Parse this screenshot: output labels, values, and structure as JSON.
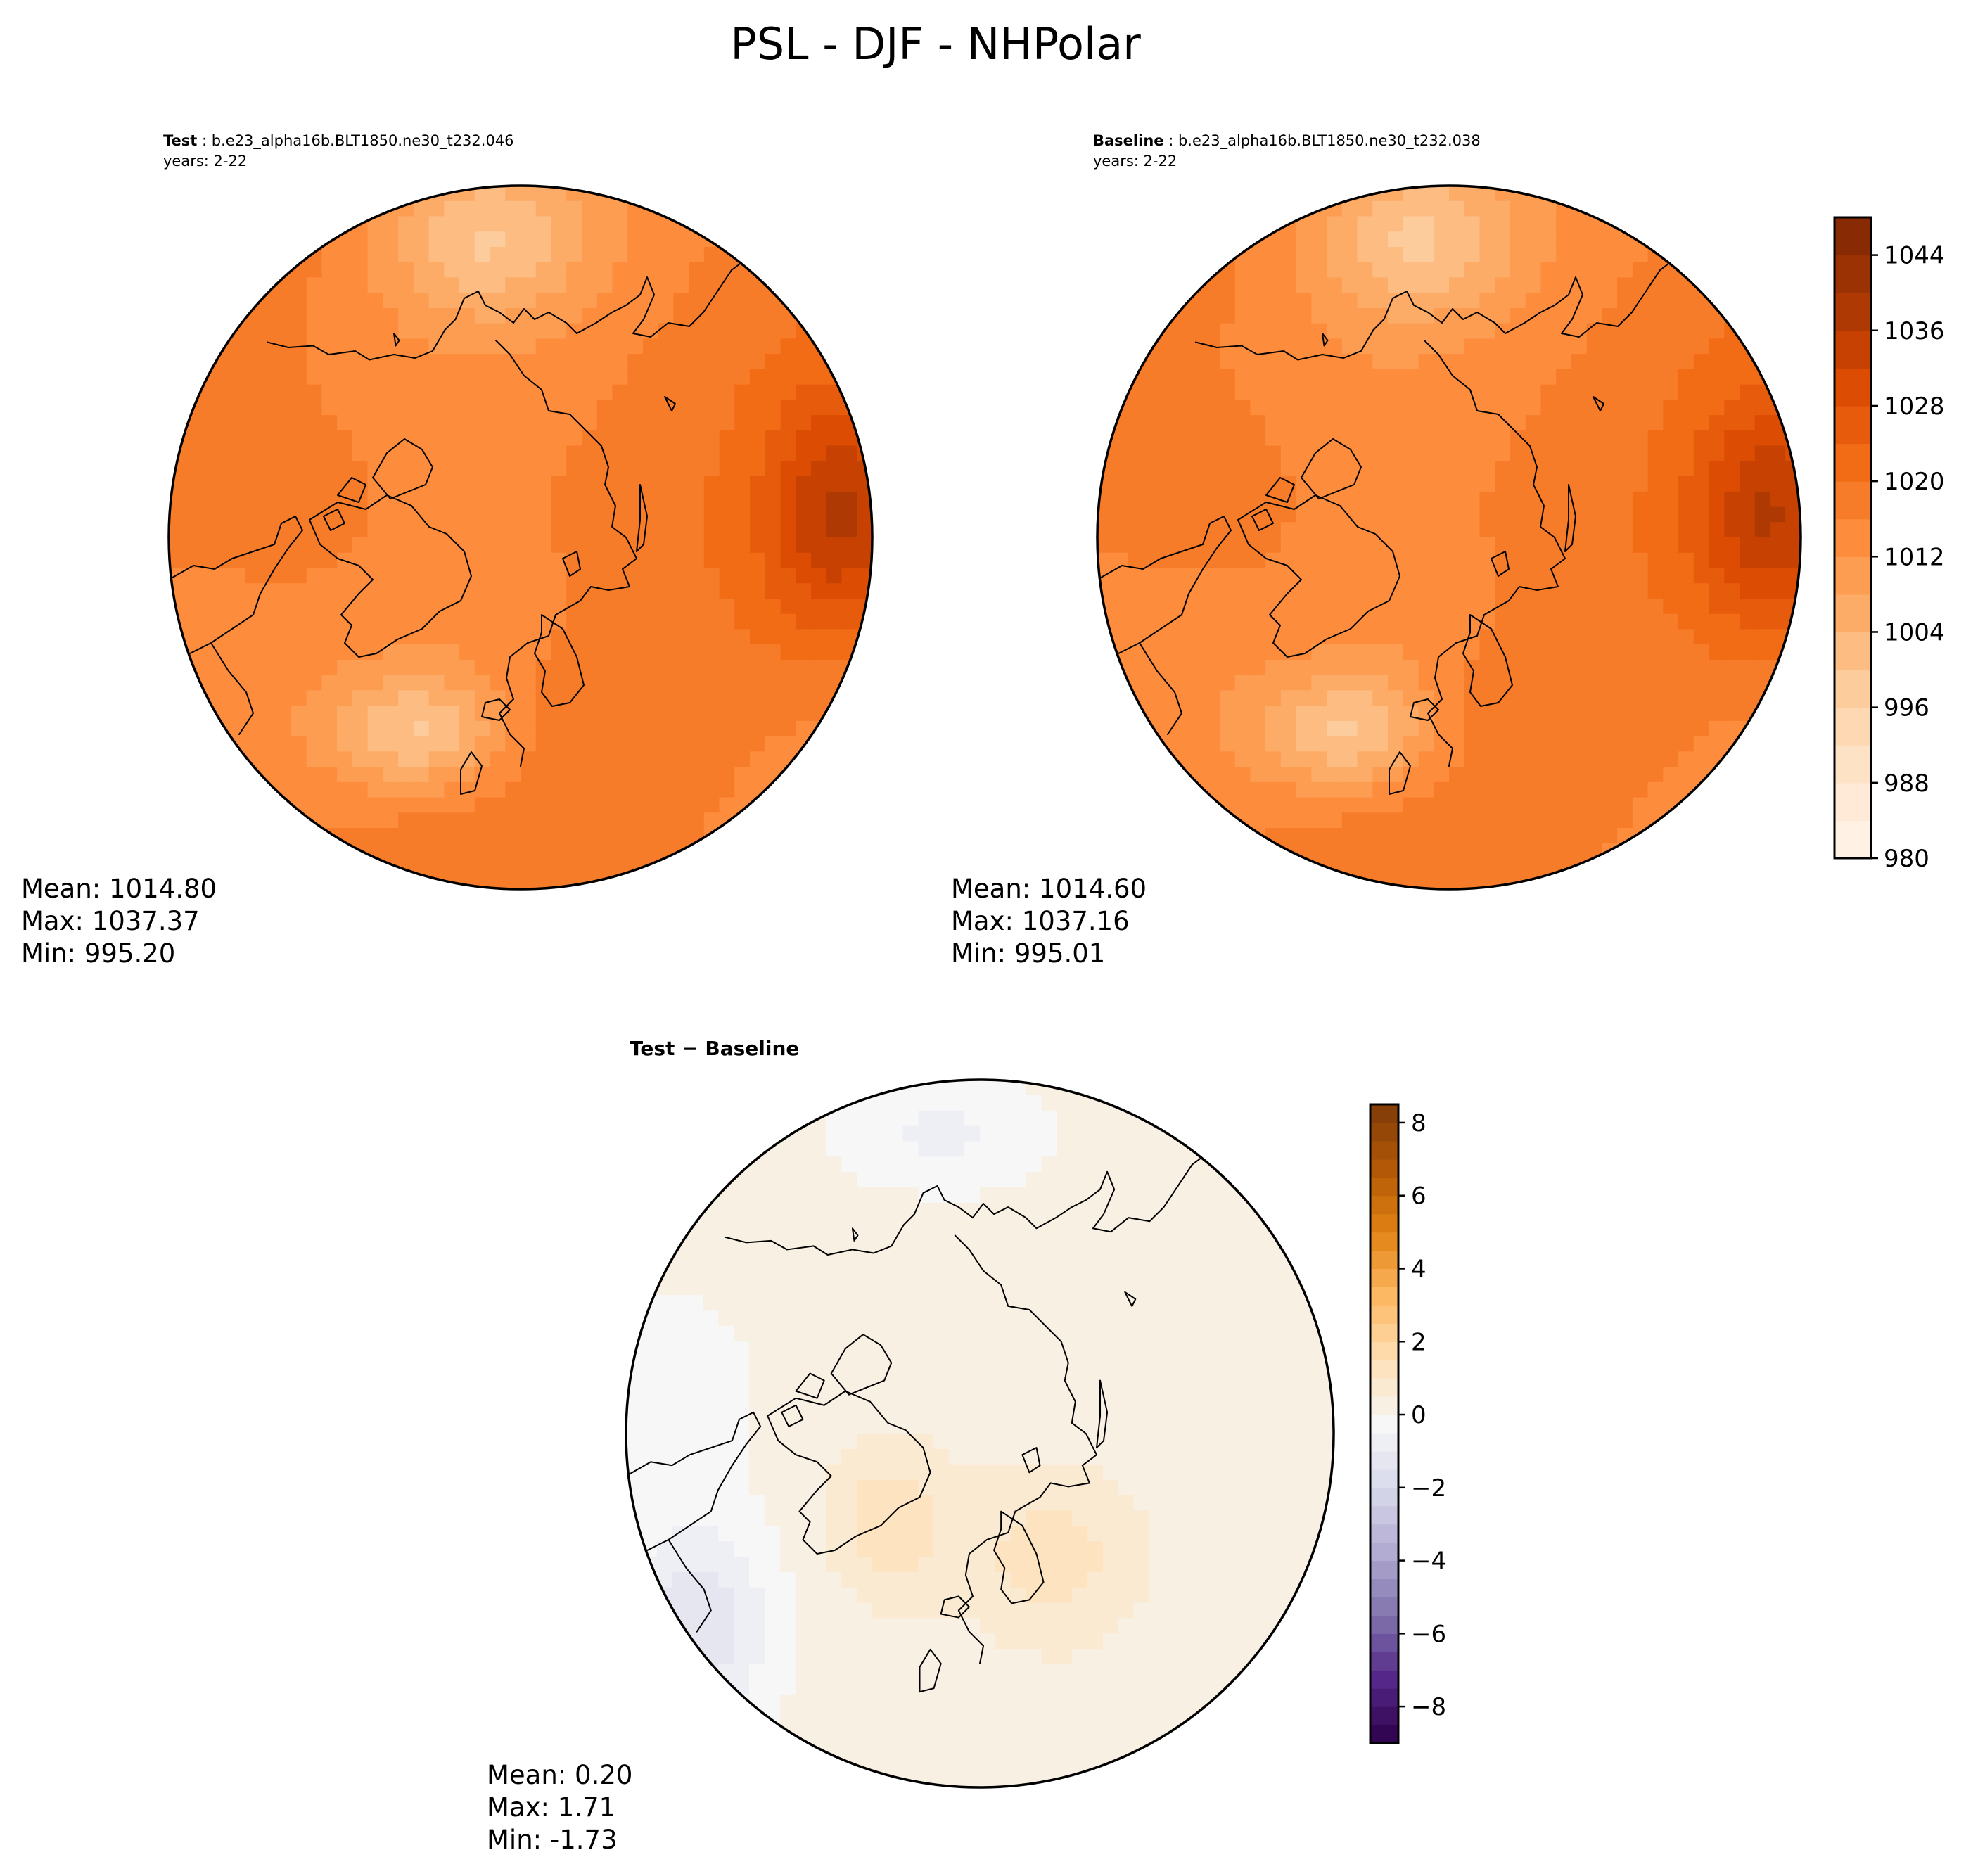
{
  "figure_title": "PSL - DJF - NHPolar",
  "colors": {
    "absolute_colormap": [
      "#fff5eb",
      "#fee6ce",
      "#fdd0a2",
      "#fdae6b",
      "#fd8d3c",
      "#f16913",
      "#d94801",
      "#a63603",
      "#7f2704"
    ],
    "difference_colormap": [
      "#2d004b",
      "#542788",
      "#8073ac",
      "#b2abd2",
      "#d8daeb",
      "#f7f7f7",
      "#fee0b6",
      "#fdb863",
      "#e08214",
      "#b35806",
      "#7f3b08"
    ]
  },
  "chart_data": [
    {
      "type": "heatmap",
      "projection": "north-polar-stereographic",
      "panel": "test",
      "label": "Test",
      "case_name": "b.e23_alpha16b.BLT1850.ne30_t232.046",
      "years_text": "years: 2-22",
      "variable": "PSL",
      "season": "DJF",
      "stats": {
        "mean": "Mean: 1014.80",
        "max": "Max: 1037.37",
        "min": "Min: 995.20"
      },
      "mean": 1014.8,
      "max": 1037.37,
      "min": 995.2,
      "contour_levels": [
        980,
        988,
        996,
        1004,
        1012,
        1020,
        1028,
        1036,
        1044
      ]
    },
    {
      "type": "heatmap",
      "projection": "north-polar-stereographic",
      "panel": "baseline",
      "label": "Baseline",
      "case_name": "b.e23_alpha16b.BLT1850.ne30_t232.038",
      "years_text": "years: 2-22",
      "variable": "PSL",
      "season": "DJF",
      "stats": {
        "mean": "Mean: 1014.60",
        "max": "Max: 1037.16",
        "min": "Min: 995.01"
      },
      "mean": 1014.6,
      "max": 1037.16,
      "min": 995.01,
      "colorbar": {
        "range": [
          980,
          1048
        ],
        "ticks": [
          980,
          988,
          996,
          1004,
          1012,
          1020,
          1028,
          1036,
          1044
        ],
        "tick_labels": [
          "980",
          "988",
          "996",
          "1004",
          "1012",
          "1020",
          "1028",
          "1036",
          "1044"
        ]
      }
    },
    {
      "type": "heatmap",
      "projection": "north-polar-stereographic",
      "panel": "difference",
      "title_left": "Test",
      "title_op": " − ",
      "title_right": "Baseline",
      "stats": {
        "mean": "Mean:  0.20",
        "max": "Max:  1.71",
        "min": "Min: -1.73"
      },
      "mean": 0.2,
      "max": 1.71,
      "min": -1.73,
      "colorbar": {
        "range": [
          -9,
          8.5
        ],
        "ticks": [
          -8,
          -6,
          -4,
          -2,
          0,
          2,
          4,
          6,
          8
        ],
        "tick_labels": [
          "−8",
          "−6",
          "−4",
          "−2",
          "0",
          "2",
          "4",
          "6",
          "8"
        ]
      }
    }
  ]
}
